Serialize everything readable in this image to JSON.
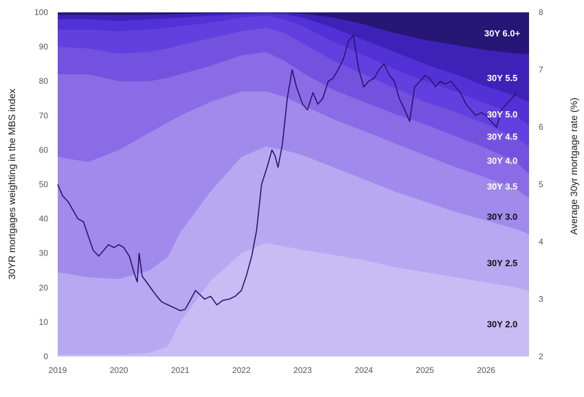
{
  "chart_data": {
    "type": "area",
    "y_left": {
      "label": "30YR mortgages weighting in the MBS index",
      "range": [
        0,
        100
      ],
      "ticks": [
        "0",
        "10",
        "20",
        "30",
        "40",
        "50",
        "60",
        "70",
        "80",
        "90",
        "100"
      ]
    },
    "y_right": {
      "label": "Average 30yr mortgage rate (%)",
      "range": [
        2,
        8
      ],
      "ticks": [
        "2",
        "3",
        "4",
        "5",
        "6",
        "7",
        "8"
      ]
    },
    "x_range": [
      2019,
      2026.7
    ],
    "x_ticks": [
      "2019",
      "2020",
      "2021",
      "2022",
      "2023",
      "2024",
      "2025",
      "2026"
    ],
    "grid": false,
    "stack_x": [
      2019,
      2019.5,
      2020,
      2020.5,
      2020.8,
      2021,
      2021.5,
      2022,
      2022.4,
      2022.7,
      2023,
      2023.5,
      2024,
      2024.5,
      2025,
      2025.5,
      2026,
      2026.5,
      2026.7
    ],
    "stack_note": "cumulative upper boundary of each coupon band (percent of index)",
    "series": [
      {
        "name": "30Y 2.0",
        "color": "#c9bcf5",
        "label_color": "#111111",
        "cum": [
          0.5,
          0.5,
          0.5,
          1,
          3,
          10,
          22,
          30,
          33,
          32,
          31,
          29.5,
          28,
          26,
          24.5,
          23,
          21.5,
          20,
          19
        ]
      },
      {
        "name": "30Y 2.5",
        "color": "#b8a8f1",
        "label_color": "#111111",
        "cum": [
          24.5,
          23,
          22.5,
          25,
          29,
          36,
          48,
          58,
          61,
          60,
          58.5,
          55,
          51.5,
          48,
          45,
          42,
          39.5,
          37,
          35.5
        ]
      },
      {
        "name": "30Y 3.0",
        "color": "#a08aeb",
        "label_color": "#111111",
        "cum": [
          58,
          56.5,
          60,
          65,
          68,
          70,
          74,
          77,
          77,
          75.5,
          73,
          69,
          65.5,
          62,
          58.5,
          55,
          52,
          48.5,
          46
        ]
      },
      {
        "name": "30Y 3.5",
        "color": "#8a6ce6",
        "label_color": "#ffffff",
        "cum": [
          82,
          82,
          80,
          80,
          81,
          82,
          84.5,
          87.5,
          88.5,
          86,
          82.5,
          77.5,
          74,
          70.5,
          67.5,
          64,
          60.5,
          56.5,
          53
        ]
      },
      {
        "name": "30Y 4.0",
        "color": "#7352e0",
        "label_color": "#ffffff",
        "cum": [
          90,
          89.5,
          88,
          88.5,
          89.5,
          90.5,
          92.5,
          94.5,
          95.5,
          94,
          91,
          86,
          82,
          78,
          74,
          71,
          67.5,
          63.5,
          61
        ]
      },
      {
        "name": "30Y 4.5",
        "color": "#6240e0",
        "label_color": "#ffffff",
        "cum": [
          95,
          95,
          94.5,
          95,
          95.5,
          96,
          97,
          98.5,
          99,
          98,
          96,
          91.5,
          87.5,
          83.5,
          80,
          77,
          73.5,
          70,
          67
        ]
      },
      {
        "name": "30Y 5.0",
        "color": "#5232d6",
        "label_color": "#ffffff",
        "cum": [
          98,
          98,
          97.5,
          98,
          98.2,
          98.5,
          99,
          99.5,
          99.7,
          99.5,
          98.5,
          95.5,
          92,
          88.5,
          85,
          82,
          78.5,
          75.5,
          74
        ]
      },
      {
        "name": "30Y 5.5",
        "color": "#3e22b8",
        "label_color": "#ffffff",
        "cum": [
          99.3,
          99.3,
          99.2,
          99.3,
          99.4,
          99.5,
          99.7,
          99.8,
          99.9,
          99.9,
          99.6,
          98.5,
          96.5,
          94,
          92,
          90.5,
          89,
          88,
          88
        ]
      },
      {
        "name": "30Y 6.0+",
        "color": "#261777",
        "label_color": "#ffffff",
        "cum": [
          100,
          100,
          100,
          100,
          100,
          100,
          100,
          100,
          100,
          100,
          100,
          100,
          100,
          100,
          100,
          100,
          100,
          100,
          100
        ]
      }
    ],
    "rate_line": {
      "axis": "right",
      "color": "#2a1570",
      "points": [
        [
          2019.0,
          5.0
        ],
        [
          2019.08,
          4.8
        ],
        [
          2019.17,
          4.7
        ],
        [
          2019.25,
          4.55
        ],
        [
          2019.33,
          4.4
        ],
        [
          2019.42,
          4.35
        ],
        [
          2019.5,
          4.1
        ],
        [
          2019.58,
          3.85
        ],
        [
          2019.67,
          3.75
        ],
        [
          2019.75,
          3.85
        ],
        [
          2019.83,
          3.95
        ],
        [
          2019.92,
          3.9
        ],
        [
          2020.0,
          3.95
        ],
        [
          2020.08,
          3.9
        ],
        [
          2020.17,
          3.75
        ],
        [
          2020.25,
          3.45
        ],
        [
          2020.3,
          3.3
        ],
        [
          2020.33,
          3.8
        ],
        [
          2020.38,
          3.4
        ],
        [
          2020.45,
          3.3
        ],
        [
          2020.55,
          3.15
        ],
        [
          2020.62,
          3.05
        ],
        [
          2020.7,
          2.95
        ],
        [
          2020.8,
          2.9
        ],
        [
          2020.9,
          2.85
        ],
        [
          2021.0,
          2.8
        ],
        [
          2021.08,
          2.82
        ],
        [
          2021.15,
          2.95
        ],
        [
          2021.25,
          3.15
        ],
        [
          2021.3,
          3.1
        ],
        [
          2021.4,
          3.0
        ],
        [
          2021.5,
          3.05
        ],
        [
          2021.6,
          2.9
        ],
        [
          2021.7,
          2.98
        ],
        [
          2021.8,
          3.0
        ],
        [
          2021.9,
          3.05
        ],
        [
          2022.0,
          3.15
        ],
        [
          2022.08,
          3.4
        ],
        [
          2022.17,
          3.75
        ],
        [
          2022.25,
          4.2
        ],
        [
          2022.33,
          5.0
        ],
        [
          2022.42,
          5.3
        ],
        [
          2022.5,
          5.6
        ],
        [
          2022.55,
          5.5
        ],
        [
          2022.6,
          5.3
        ],
        [
          2022.67,
          5.7
        ],
        [
          2022.75,
          6.5
        ],
        [
          2022.83,
          7.0
        ],
        [
          2022.9,
          6.7
        ],
        [
          2023.0,
          6.4
        ],
        [
          2023.08,
          6.3
        ],
        [
          2023.17,
          6.6
        ],
        [
          2023.25,
          6.4
        ],
        [
          2023.33,
          6.5
        ],
        [
          2023.42,
          6.8
        ],
        [
          2023.5,
          6.85
        ],
        [
          2023.58,
          7.0
        ],
        [
          2023.67,
          7.2
        ],
        [
          2023.75,
          7.5
        ],
        [
          2023.83,
          7.6
        ],
        [
          2023.92,
          7.0
        ],
        [
          2024.0,
          6.7
        ],
        [
          2024.08,
          6.8
        ],
        [
          2024.17,
          6.85
        ],
        [
          2024.25,
          7.0
        ],
        [
          2024.33,
          7.1
        ],
        [
          2024.42,
          6.9
        ],
        [
          2024.5,
          6.8
        ],
        [
          2024.58,
          6.5
        ],
        [
          2024.67,
          6.3
        ],
        [
          2024.75,
          6.1
        ],
        [
          2024.83,
          6.7
        ],
        [
          2024.92,
          6.8
        ],
        [
          2025.0,
          6.9
        ],
        [
          2025.08,
          6.85
        ],
        [
          2025.17,
          6.7
        ],
        [
          2025.25,
          6.8
        ],
        [
          2025.33,
          6.75
        ],
        [
          2025.42,
          6.8
        ],
        [
          2025.5,
          6.7
        ],
        [
          2025.58,
          6.6
        ],
        [
          2025.67,
          6.4
        ],
        [
          2025.75,
          6.3
        ],
        [
          2025.83,
          6.2
        ],
        [
          2025.92,
          6.25
        ],
        [
          2026.0,
          6.2
        ],
        [
          2026.08,
          6.1
        ],
        [
          2026.17,
          6.0
        ],
        [
          2026.25,
          6.3
        ],
        [
          2026.33,
          6.4
        ],
        [
          2026.42,
          6.5
        ],
        [
          2026.5,
          6.6
        ]
      ]
    }
  }
}
